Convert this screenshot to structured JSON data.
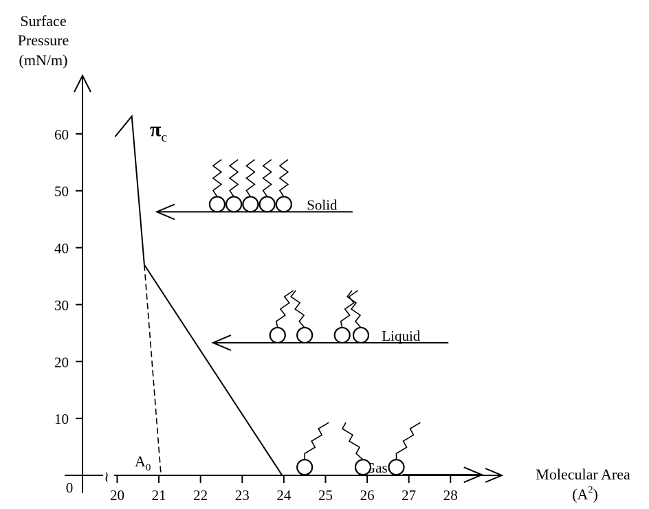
{
  "chart_data": {
    "type": "line",
    "y_axis": {
      "title_lines": [
        "Surface",
        "Pressure",
        "(mN/m)"
      ],
      "ticks": [
        10,
        20,
        30,
        40,
        50,
        60
      ],
      "range": [
        0,
        70
      ]
    },
    "x_axis": {
      "title_line1": "Molecular Area",
      "title_line2_prefix": "(A",
      "title_line2_sup": "2",
      "title_line2_suffix": ")",
      "ticks": [
        20,
        21,
        22,
        23,
        24,
        25,
        26,
        27,
        28
      ],
      "origin_label": "0",
      "break_symbol": "≀",
      "range": [
        19.2,
        29.2
      ]
    },
    "isotherm": {
      "points": [
        [
          19.95,
          59.5
        ],
        [
          20.35,
          63.1
        ],
        [
          20.65,
          37.0
        ],
        [
          23.95,
          0.1
        ]
      ]
    },
    "extrapolation": {
      "points": [
        [
          20.65,
          37.0
        ],
        [
          21.05,
          0.1
        ]
      ]
    },
    "annotations": {
      "collapse_symbol": "π",
      "collapse_subscript": "c",
      "a0_symbol": "A",
      "a0_subscript": "0"
    },
    "phases": [
      {
        "label": "Solid",
        "arrow_from": 25.65,
        "arrow_to": 20.95,
        "pressure": 46.3,
        "molecules": [
          22.4,
          22.8,
          23.2,
          23.6,
          24.0
        ]
      },
      {
        "label": "Liquid",
        "arrow_from": 27.95,
        "arrow_to": 22.3,
        "pressure": 23.3,
        "molecules": [
          23.85,
          24.5,
          25.4,
          25.85
        ]
      },
      {
        "label": "Gas",
        "arrow_from": 26.85,
        "arrow_to": 28.75,
        "pressure": 0.1,
        "molecules": [
          24.5,
          25.9,
          26.7
        ]
      }
    ]
  }
}
